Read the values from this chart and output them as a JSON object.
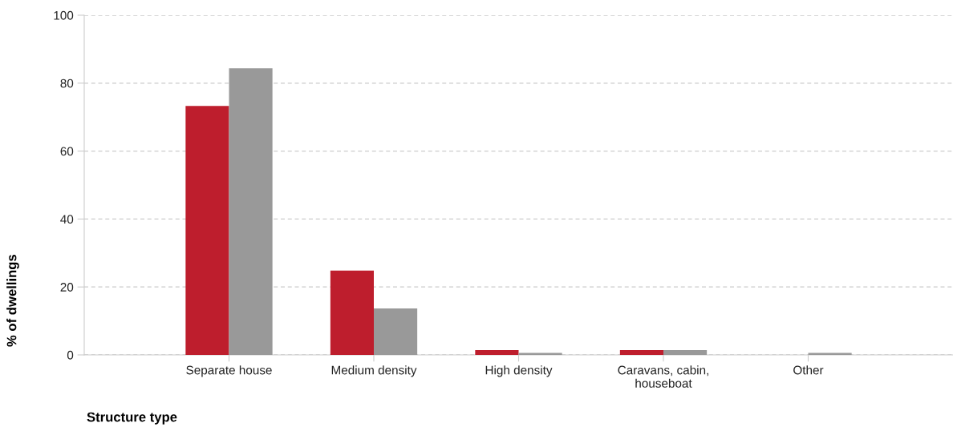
{
  "chart_data": {
    "type": "bar",
    "xlabel": "Structure type",
    "ylabel": "% of dwellings",
    "categories": [
      "Separate house",
      "Medium density",
      "High density",
      "Caravans, cabin,\nhouseboat",
      "Other"
    ],
    "series": [
      {
        "color": "#be1e2d",
        "values": [
          73.3,
          24.8,
          1.4,
          1.4,
          0
        ]
      },
      {
        "color": "#999999",
        "values": [
          84.4,
          13.7,
          0.6,
          1.4,
          0.6
        ]
      }
    ],
    "ylim": [
      0,
      100
    ],
    "yticks": [
      0,
      20,
      40,
      60,
      80,
      100
    ],
    "grid": "y"
  }
}
